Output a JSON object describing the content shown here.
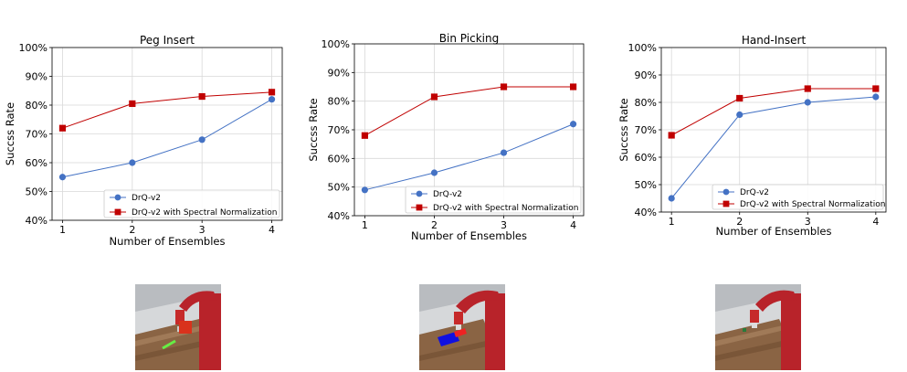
{
  "chart_data": [
    {
      "type": "line",
      "title": "Peg Insert",
      "xlabel": "Number of Ensembles",
      "ylabel": "Succss Rate",
      "x": [
        1,
        2,
        3,
        4
      ],
      "xticks": [
        "1",
        "2",
        "3",
        "4"
      ],
      "ylim": [
        40,
        100
      ],
      "yticks": [
        "40%",
        "50%",
        "60%",
        "70%",
        "80%",
        "90%",
        "100%"
      ],
      "grid": true,
      "legend_position": "lower-right",
      "series": [
        {
          "name": "DrQ-v2",
          "values": [
            55,
            60,
            68,
            82
          ],
          "color": "#4472c4",
          "marker": "circle"
        },
        {
          "name": "DrQ-v2 with Spectral Normalization",
          "values": [
            72,
            80.5,
            83,
            84.5
          ],
          "color": "#c00000",
          "marker": "square"
        }
      ]
    },
    {
      "type": "line",
      "title": "Bin Picking",
      "xlabel": "Number of Ensembles",
      "ylabel": "Succss Rate",
      "x": [
        1,
        2,
        3,
        4
      ],
      "xticks": [
        "1",
        "2",
        "3",
        "4"
      ],
      "ylim": [
        40,
        100
      ],
      "yticks": [
        "40%",
        "50%",
        "60%",
        "70%",
        "80%",
        "90%",
        "100%"
      ],
      "grid": true,
      "legend_position": "lower-right",
      "series": [
        {
          "name": "DrQ-v2",
          "values": [
            49,
            55,
            62,
            72
          ],
          "color": "#4472c4",
          "marker": "circle"
        },
        {
          "name": "DrQ-v2 with Spectral Normalization",
          "values": [
            68,
            81.5,
            85,
            85
          ],
          "color": "#c00000",
          "marker": "square"
        }
      ]
    },
    {
      "type": "line",
      "title": "Hand-Insert",
      "xlabel": "Number of Ensembles",
      "ylabel": "Succss Rate",
      "x": [
        1,
        2,
        3,
        4
      ],
      "xticks": [
        "1",
        "2",
        "3",
        "4"
      ],
      "ylim": [
        40,
        100
      ],
      "yticks": [
        "40%",
        "50%",
        "60%",
        "70%",
        "80%",
        "90%",
        "100%"
      ],
      "grid": true,
      "legend_position": "lower-right",
      "series": [
        {
          "name": "DrQ-v2",
          "values": [
            45,
            75.5,
            80,
            82
          ],
          "color": "#4472c4",
          "marker": "circle"
        },
        {
          "name": "DrQ-v2 with Spectral Normalization",
          "values": [
            68,
            81.5,
            85,
            85
          ],
          "color": "#c00000",
          "marker": "square"
        }
      ]
    }
  ],
  "thumbnails": [
    {
      "name": "peg-insert",
      "object_color": "#d9321c",
      "accent_color": "#66ee44"
    },
    {
      "name": "bin-picking",
      "object_color": "#1010e0",
      "accent_color": "#ee2222"
    },
    {
      "name": "hand-insert",
      "object_color": "#2a7a3a",
      "accent_color": "#8a5a3a"
    }
  ]
}
